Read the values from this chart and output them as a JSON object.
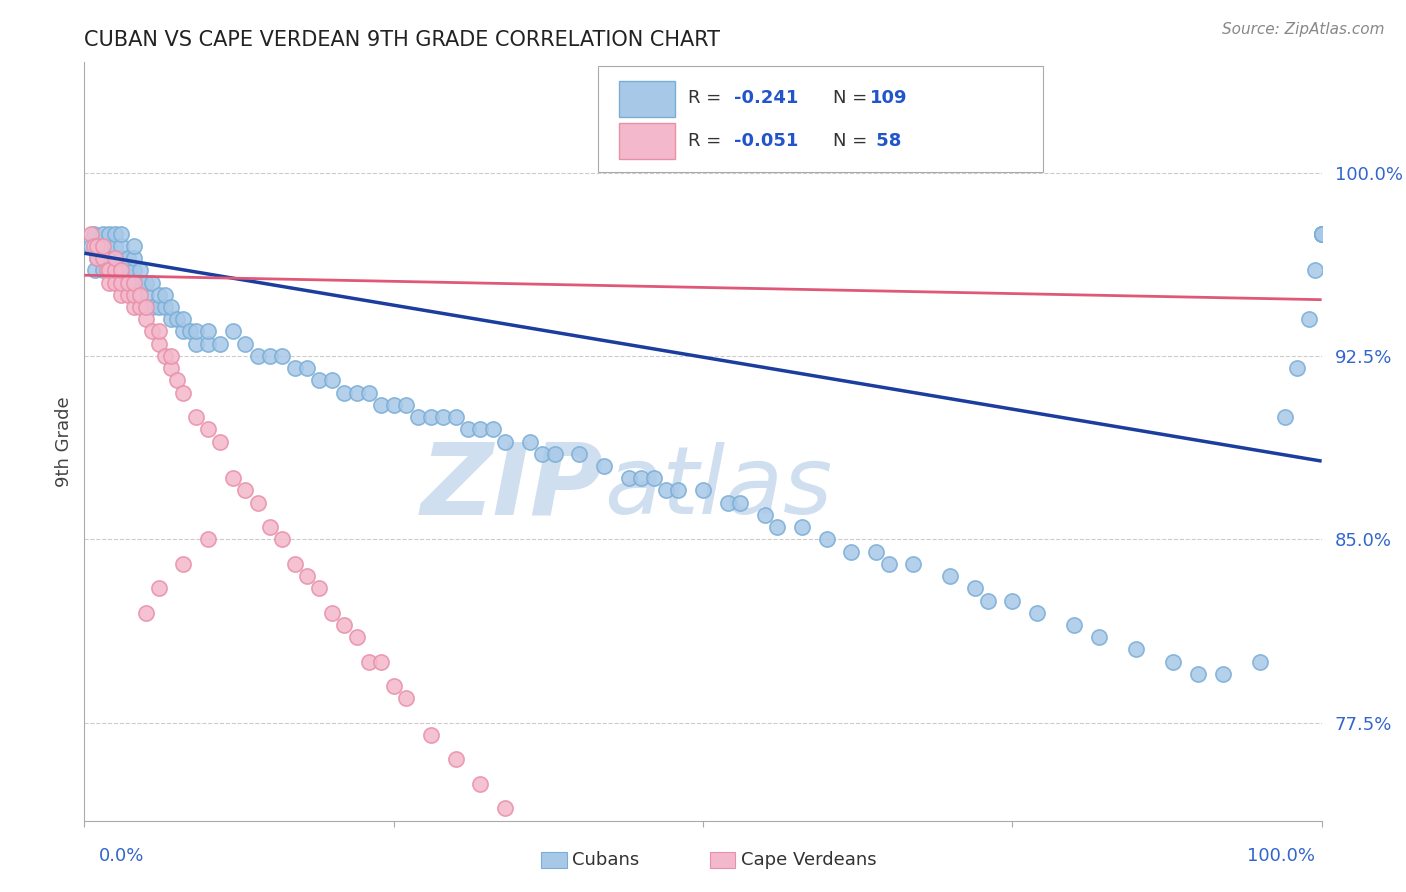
{
  "title": "CUBAN VS CAPE VERDEAN 9TH GRADE CORRELATION CHART",
  "source_text": "Source: ZipAtlas.com",
  "ylabel": "9th Grade",
  "ytick_values": [
    0.775,
    0.85,
    0.925,
    1.0
  ],
  "xlim": [
    0.0,
    1.0
  ],
  "ylim": [
    0.735,
    1.045
  ],
  "blue_color": "#a8c8e8",
  "blue_edge_color": "#7aaed6",
  "pink_color": "#f4b8cc",
  "pink_edge_color": "#e890a8",
  "trendline_blue_color": "#1a3d9e",
  "trendline_pink_color": "#e05878",
  "legend_text_color": "#2255cc",
  "title_color": "#222222",
  "axis_label_color": "#3366cc",
  "ytick_color": "#3366cc",
  "watermark_color": "#d0dff0",
  "background_color": "#ffffff",
  "grid_color": "#cccccc",
  "R_blue": -0.241,
  "N_blue": 109,
  "R_pink": -0.051,
  "N_pink": 58,
  "trendline_blue_x0": 0.0,
  "trendline_blue_y0": 0.967,
  "trendline_blue_x1": 1.0,
  "trendline_blue_y1": 0.882,
  "trendline_pink_x0": 0.0,
  "trendline_pink_y0": 0.958,
  "trendline_pink_x1": 1.0,
  "trendline_pink_y1": 0.948,
  "blue_x": [
    0.005,
    0.008,
    0.009,
    0.01,
    0.01,
    0.015,
    0.015,
    0.018,
    0.02,
    0.02,
    0.025,
    0.025,
    0.025,
    0.03,
    0.03,
    0.03,
    0.03,
    0.035,
    0.035,
    0.04,
    0.04,
    0.04,
    0.04,
    0.045,
    0.045,
    0.05,
    0.05,
    0.055,
    0.055,
    0.06,
    0.06,
    0.065,
    0.065,
    0.07,
    0.07,
    0.075,
    0.08,
    0.08,
    0.085,
    0.09,
    0.09,
    0.1,
    0.1,
    0.11,
    0.12,
    0.13,
    0.14,
    0.15,
    0.16,
    0.17,
    0.18,
    0.19,
    0.2,
    0.21,
    0.22,
    0.23,
    0.24,
    0.25,
    0.26,
    0.27,
    0.28,
    0.29,
    0.3,
    0.31,
    0.32,
    0.33,
    0.34,
    0.36,
    0.37,
    0.38,
    0.4,
    0.42,
    0.44,
    0.45,
    0.46,
    0.47,
    0.48,
    0.5,
    0.52,
    0.53,
    0.55,
    0.56,
    0.58,
    0.6,
    0.62,
    0.64,
    0.65,
    0.67,
    0.7,
    0.72,
    0.73,
    0.75,
    0.77,
    0.8,
    0.82,
    0.85,
    0.88,
    0.9,
    0.92,
    0.95,
    0.97,
    0.98,
    0.99,
    0.995,
    1.0,
    1.0,
    1.0,
    1.0,
    1.0
  ],
  "blue_y": [
    0.97,
    0.975,
    0.96,
    0.965,
    0.97,
    0.975,
    0.96,
    0.965,
    0.97,
    0.975,
    0.965,
    0.97,
    0.975,
    0.96,
    0.965,
    0.97,
    0.975,
    0.96,
    0.965,
    0.955,
    0.96,
    0.965,
    0.97,
    0.955,
    0.96,
    0.95,
    0.955,
    0.945,
    0.955,
    0.945,
    0.95,
    0.945,
    0.95,
    0.94,
    0.945,
    0.94,
    0.935,
    0.94,
    0.935,
    0.93,
    0.935,
    0.93,
    0.935,
    0.93,
    0.935,
    0.93,
    0.925,
    0.925,
    0.925,
    0.92,
    0.92,
    0.915,
    0.915,
    0.91,
    0.91,
    0.91,
    0.905,
    0.905,
    0.905,
    0.9,
    0.9,
    0.9,
    0.9,
    0.895,
    0.895,
    0.895,
    0.89,
    0.89,
    0.885,
    0.885,
    0.885,
    0.88,
    0.875,
    0.875,
    0.875,
    0.87,
    0.87,
    0.87,
    0.865,
    0.865,
    0.86,
    0.855,
    0.855,
    0.85,
    0.845,
    0.845,
    0.84,
    0.84,
    0.835,
    0.83,
    0.825,
    0.825,
    0.82,
    0.815,
    0.81,
    0.805,
    0.8,
    0.795,
    0.795,
    0.8,
    0.9,
    0.92,
    0.94,
    0.96,
    0.975,
    0.975,
    0.975,
    0.975,
    0.975
  ],
  "pink_x": [
    0.005,
    0.008,
    0.01,
    0.01,
    0.015,
    0.015,
    0.018,
    0.02,
    0.02,
    0.025,
    0.025,
    0.025,
    0.03,
    0.03,
    0.03,
    0.035,
    0.035,
    0.04,
    0.04,
    0.04,
    0.045,
    0.045,
    0.05,
    0.05,
    0.055,
    0.06,
    0.06,
    0.065,
    0.07,
    0.07,
    0.075,
    0.08,
    0.09,
    0.1,
    0.11,
    0.12,
    0.13,
    0.14,
    0.15,
    0.16,
    0.17,
    0.18,
    0.19,
    0.2,
    0.21,
    0.22,
    0.23,
    0.24,
    0.25,
    0.26,
    0.28,
    0.3,
    0.32,
    0.34,
    0.05,
    0.06,
    0.08,
    0.1
  ],
  "pink_y": [
    0.975,
    0.97,
    0.965,
    0.97,
    0.965,
    0.97,
    0.96,
    0.955,
    0.96,
    0.955,
    0.96,
    0.965,
    0.95,
    0.955,
    0.96,
    0.95,
    0.955,
    0.945,
    0.95,
    0.955,
    0.945,
    0.95,
    0.94,
    0.945,
    0.935,
    0.93,
    0.935,
    0.925,
    0.92,
    0.925,
    0.915,
    0.91,
    0.9,
    0.895,
    0.89,
    0.875,
    0.87,
    0.865,
    0.855,
    0.85,
    0.84,
    0.835,
    0.83,
    0.82,
    0.815,
    0.81,
    0.8,
    0.8,
    0.79,
    0.785,
    0.77,
    0.76,
    0.75,
    0.74,
    0.82,
    0.83,
    0.84,
    0.85
  ]
}
